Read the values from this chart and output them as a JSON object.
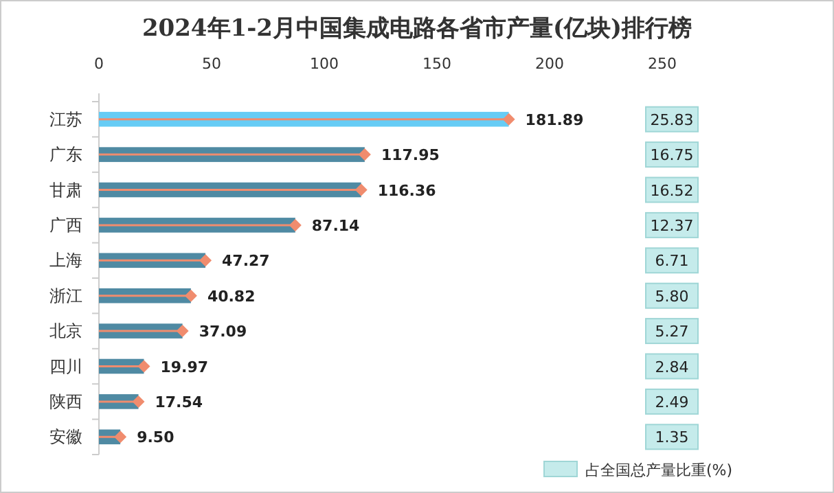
{
  "chart_data": [
    {
      "type": "bar",
      "orientation": "horizontal",
      "title": "2024年1-2月中国集成电路各省市产量(亿块)排行榜",
      "categories": [
        "江苏",
        "广东",
        "甘肃",
        "广西",
        "上海",
        "浙江",
        "北京",
        "四川",
        "陕西",
        "安徽"
      ],
      "xlim": [
        0,
        250
      ],
      "xticks": [
        0,
        50,
        100,
        150,
        200,
        250
      ],
      "grid": false,
      "series": [
        {
          "colors": [
            "#66ccf5",
            "#4f8aa3",
            "#4f8aa3",
            "#4f8aa3",
            "#4f8aa3",
            "#4f8aa3",
            "#4f8aa3",
            "#4f8aa3",
            "#4f8aa3",
            "#4f8aa3"
          ],
          "values": [
            181.89,
            117.95,
            116.36,
            87.14,
            47.27,
            40.82,
            37.09,
            19.97,
            17.54,
            9.5
          ],
          "value_labels": [
            "181.89",
            "117.95",
            "116.36",
            "87.14",
            "47.27",
            "40.82",
            "37.09",
            "19.97",
            "17.54",
            "9.50"
          ]
        },
        {
          "type": "lollipop",
          "color": "#f08c6e",
          "marker": "diamond",
          "values": [
            181.89,
            117.95,
            116.36,
            87.14,
            47.27,
            40.82,
            37.09,
            19.97,
            17.54,
            9.5
          ]
        }
      ]
    },
    {
      "type": "other",
      "legend": "bottom",
      "data_labels": true,
      "series": [
        {
          "name": "占全国总产量比重(%)",
          "color": "#c5ebeb",
          "values": [
            25.83,
            16.75,
            16.52,
            12.37,
            6.71,
            5.8,
            5.27,
            2.84,
            2.49,
            1.35
          ],
          "value_labels": [
            "25.83",
            "16.75",
            "16.52",
            "12.37",
            "6.71",
            "5.80",
            "5.27",
            "2.84",
            "2.49",
            "1.35"
          ]
        }
      ]
    }
  ]
}
